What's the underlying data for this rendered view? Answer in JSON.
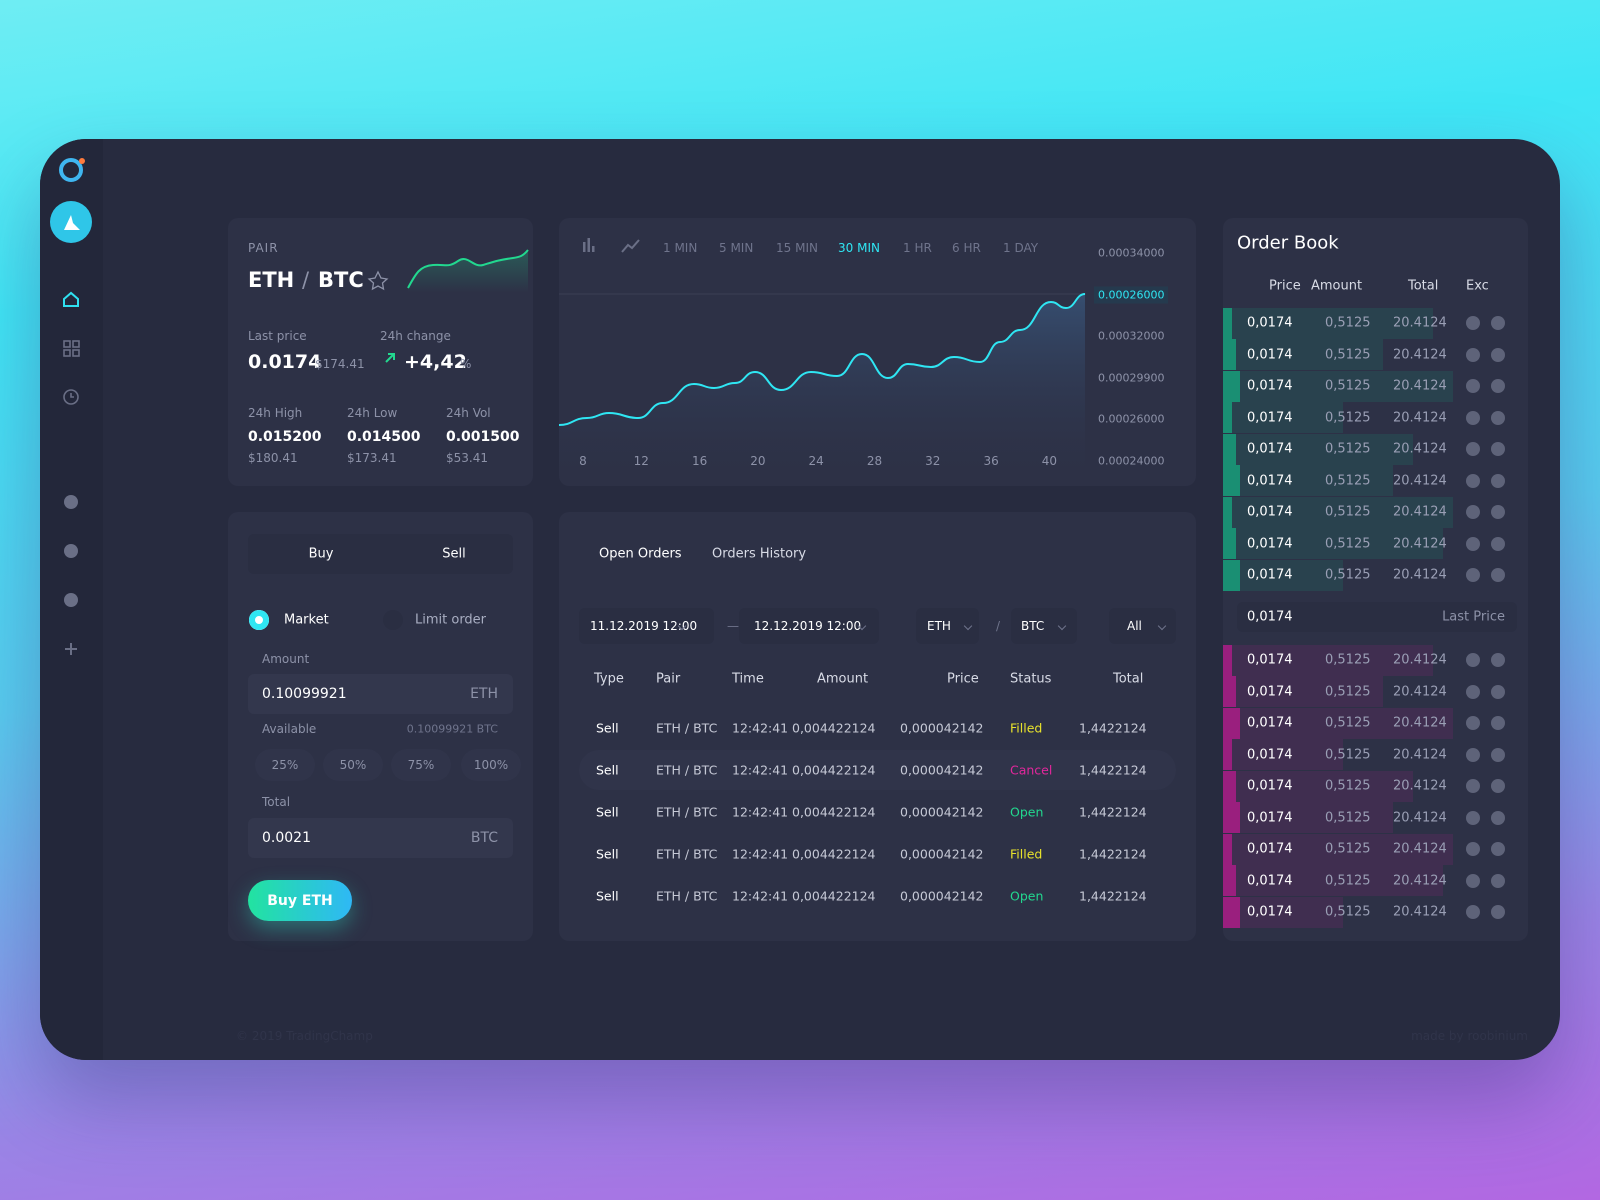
{
  "pair": {
    "label": "PAIR",
    "base": "ETH",
    "separator": "/",
    "quote": "BTC",
    "last_price_label": "Last price",
    "last_price": "0.0174",
    "last_price_usd": "$174.41",
    "change_label": "24h change",
    "change": "+4,42",
    "change_unit": "%",
    "stats": [
      {
        "label": "24h High",
        "value": "0.015200",
        "usd": "$180.41"
      },
      {
        "label": "24h Low",
        "value": "0.014500",
        "usd": "$173.41"
      },
      {
        "label": "24h Vol",
        "value": "0.001500",
        "usd": "$53.41"
      }
    ]
  },
  "chart": {
    "intervals": [
      "1 MIN",
      "5 MIN",
      "15 MIN",
      "30 MIN",
      "1 HR",
      "6 HR",
      "1 DAY"
    ],
    "active_interval": 3,
    "y_labels": [
      "0.00034000",
      "0.00026000",
      "0.00032000",
      "0.00029900",
      "0.00026000",
      "0.00024000"
    ],
    "current_price_label": 1,
    "x_labels": [
      "8",
      "12",
      "16",
      "20",
      "24",
      "28",
      "32",
      "36",
      "40"
    ]
  },
  "trade": {
    "tabs": [
      "Buy",
      "Sell"
    ],
    "order_types": [
      "Market",
      "Limit order"
    ],
    "amount_label": "Amount",
    "amount": "0.10099921",
    "amount_unit": "ETH",
    "available_label": "Available",
    "available": "0.10099921 BTC",
    "percents": [
      "25%",
      "50%",
      "75%",
      "100%"
    ],
    "total_label": "Total",
    "total": "0.0021",
    "total_unit": "BTC",
    "button": "Buy ETH"
  },
  "orders": {
    "tabs": [
      "Open Orders",
      "Orders History"
    ],
    "date_from": "11.12.2019 12:00",
    "date_separator": "—",
    "date_to": "12.12.2019 12:00",
    "base": "ETH",
    "pair_separator": "/",
    "quote": "BTC",
    "filter": "All",
    "columns": [
      "Type",
      "Pair",
      "Time",
      "Amount",
      "Price",
      "Status",
      "Total"
    ],
    "rows": [
      [
        "Sell",
        "ETH / BTC",
        "12:42:41",
        "0,004422124",
        "0,000042142",
        "Filled",
        "1,4422124"
      ],
      [
        "Sell",
        "ETH / BTC",
        "12:42:41",
        "0,004422124",
        "0,000042142",
        "Cancel",
        "1,4422124"
      ],
      [
        "Sell",
        "ETH / BTC",
        "12:42:41",
        "0,004422124",
        "0,000042142",
        "Open",
        "1,4422124"
      ],
      [
        "Sell",
        "ETH / BTC",
        "12:42:41",
        "0,004422124",
        "0,000042142",
        "Filled",
        "1,4422124"
      ],
      [
        "Sell",
        "ETH / BTC",
        "12:42:41",
        "0,004422124",
        "0,000042142",
        "Open",
        "1,4422124"
      ]
    ],
    "status_colors": {
      "Filled": "#e8e22c",
      "Cancel": "#e2279c",
      "Open": "#22d88f"
    }
  },
  "order_book": {
    "title": "Order Book",
    "columns": [
      "Price",
      "Amount",
      "Total",
      "Exc"
    ],
    "asks": [
      [
        "0,0174",
        "0,5125",
        "20.4124"
      ],
      [
        "0,0174",
        "0,5125",
        "20.4124"
      ],
      [
        "0,0174",
        "0,5125",
        "20.4124"
      ],
      [
        "0,0174",
        "0,5125",
        "20.4124"
      ],
      [
        "0,0174",
        "0,5125",
        "20.4124"
      ],
      [
        "0,0174",
        "0,5125",
        "20.4124"
      ],
      [
        "0,0174",
        "0,5125",
        "20.4124"
      ],
      [
        "0,0174",
        "0,5125",
        "20.4124"
      ],
      [
        "0,0174",
        "0,5125",
        "20.4124"
      ]
    ],
    "ask_color": "#1a8f73",
    "last_price": "0,0174",
    "last_price_label": "Last Price",
    "bids": [
      [
        "0,0174",
        "0,5125",
        "20.4124"
      ],
      [
        "0,0174",
        "0,5125",
        "20.4124"
      ],
      [
        "0,0174",
        "0,5125",
        "20.4124"
      ],
      [
        "0,0174",
        "0,5125",
        "20.4124"
      ],
      [
        "0,0174",
        "0,5125",
        "20.4124"
      ],
      [
        "0,0174",
        "0,5125",
        "20.4124"
      ],
      [
        "0,0174",
        "0,5125",
        "20.4124"
      ],
      [
        "0,0174",
        "0,5125",
        "20.4124"
      ],
      [
        "0,0174",
        "0,5125",
        "20.4124"
      ]
    ],
    "bid_color": "#9a1f7e"
  },
  "footer": {
    "left": "© 2019 TradingChamp",
    "right": "made by roobinium"
  }
}
